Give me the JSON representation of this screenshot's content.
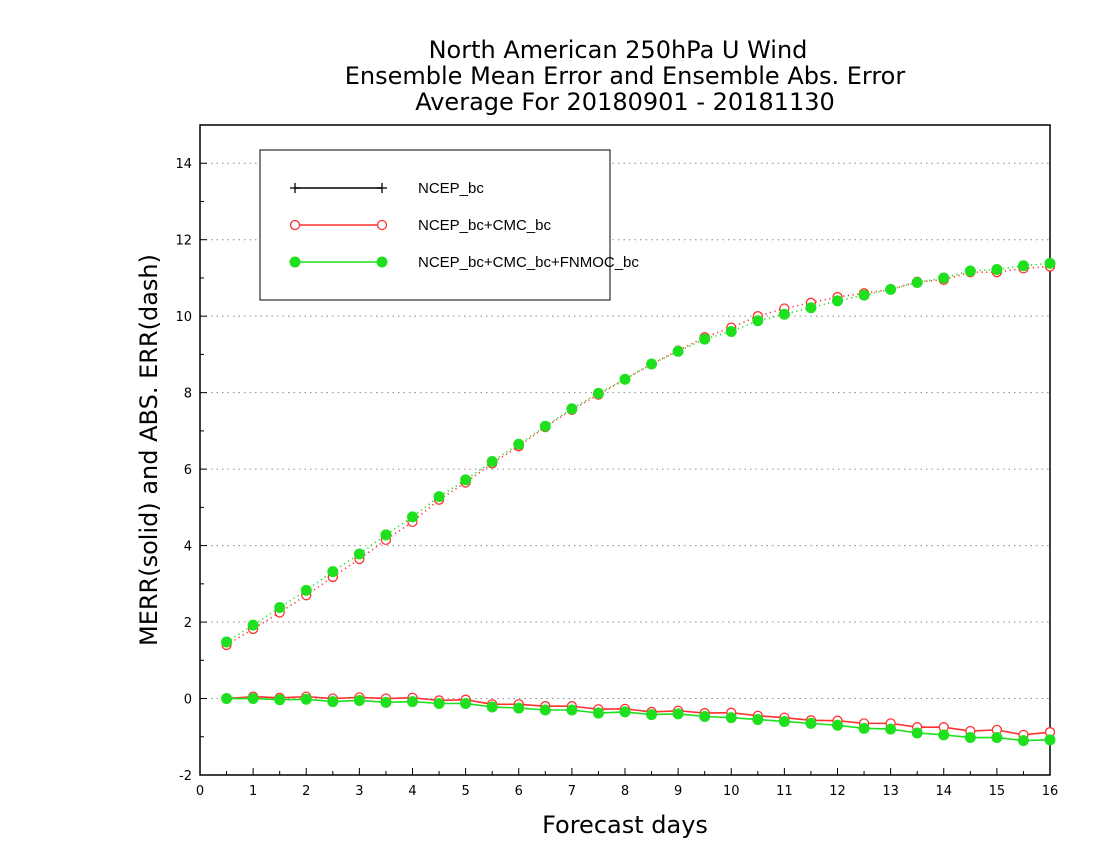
{
  "chart_data": {
    "type": "line",
    "title": [
      "North American 250hPa U Wind",
      "Ensemble Mean Error and Ensemble Abs. Error",
      "Average For 20180901 - 20181130"
    ],
    "xlabel": "Forecast days",
    "ylabel": "MERR(solid) and ABS. ERR(dash)",
    "xlim": [
      0,
      16
    ],
    "ylim": [
      -2,
      15
    ],
    "xticks": [
      0,
      1,
      2,
      3,
      4,
      5,
      6,
      7,
      8,
      9,
      10,
      11,
      12,
      13,
      14,
      15,
      16
    ],
    "yticks": [
      -2,
      0,
      2,
      4,
      6,
      8,
      10,
      12,
      14
    ],
    "grid": "horizontal dotted",
    "legend_position": "top-left",
    "x": [
      0.5,
      1,
      1.5,
      2,
      2.5,
      3,
      3.5,
      4,
      4.5,
      5,
      5.5,
      6,
      6.5,
      7,
      7.5,
      8,
      8.5,
      9,
      9.5,
      10,
      10.5,
      11,
      11.5,
      12,
      12.5,
      13,
      13.5,
      14,
      14.5,
      15,
      15.5,
      16
    ],
    "series": [
      {
        "name": "NCEP_bc",
        "color": "#000000",
        "marker": "plus",
        "merr": [],
        "abs_err": []
      },
      {
        "name": "NCEP_bc+CMC_bc",
        "color": "#ff3030",
        "marker": "open-circle",
        "merr": [
          0.0,
          0.05,
          0.02,
          0.05,
          0.0,
          0.03,
          0.0,
          0.02,
          -0.05,
          -0.03,
          -0.15,
          -0.15,
          -0.2,
          -0.2,
          -0.28,
          -0.27,
          -0.35,
          -0.32,
          -0.38,
          -0.37,
          -0.45,
          -0.5,
          -0.57,
          -0.58,
          -0.65,
          -0.65,
          -0.75,
          -0.75,
          -0.85,
          -0.82,
          -0.95,
          -0.88
        ],
        "abs_err": [
          1.4,
          1.82,
          2.25,
          2.7,
          3.18,
          3.65,
          4.15,
          4.62,
          5.2,
          5.65,
          6.15,
          6.6,
          7.1,
          7.55,
          7.95,
          8.35,
          8.75,
          9.1,
          9.45,
          9.7,
          10.0,
          10.2,
          10.35,
          10.5,
          10.6,
          10.7,
          10.9,
          10.95,
          11.15,
          11.15,
          11.25,
          11.3
        ]
      },
      {
        "name": "NCEP_bc+CMC_bc+FNMOC_bc",
        "color": "#1ee01e",
        "marker": "filled-circle",
        "merr": [
          0.0,
          0.0,
          -0.03,
          -0.02,
          -0.08,
          -0.05,
          -0.1,
          -0.08,
          -0.13,
          -0.13,
          -0.22,
          -0.25,
          -0.3,
          -0.3,
          -0.38,
          -0.35,
          -0.42,
          -0.4,
          -0.47,
          -0.5,
          -0.55,
          -0.6,
          -0.65,
          -0.7,
          -0.78,
          -0.8,
          -0.9,
          -0.95,
          -1.02,
          -1.02,
          -1.1,
          -1.08
        ],
        "abs_err": [
          1.48,
          1.92,
          2.38,
          2.83,
          3.32,
          3.78,
          4.28,
          4.75,
          5.28,
          5.72,
          6.2,
          6.65,
          7.12,
          7.58,
          7.98,
          8.35,
          8.75,
          9.08,
          9.4,
          9.6,
          9.88,
          10.05,
          10.22,
          10.4,
          10.55,
          10.7,
          10.88,
          11.0,
          11.18,
          11.22,
          11.32,
          11.38
        ]
      }
    ]
  }
}
